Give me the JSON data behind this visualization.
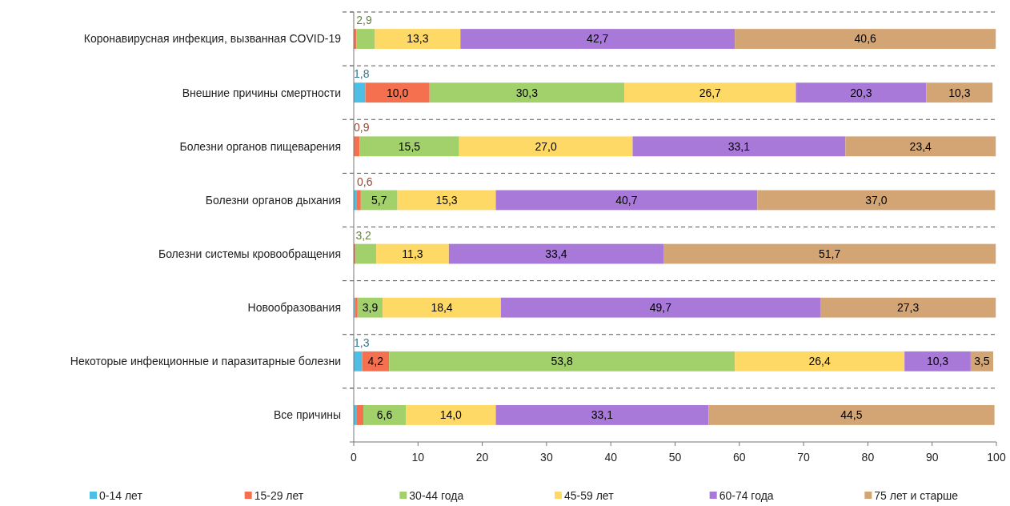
{
  "chart_data": {
    "type": "bar",
    "orientation": "horizontal",
    "stacked": true,
    "categories": [
      "Коронавирусная инфекция, вызванная COVID-19",
      "Внешние причины смертности",
      "Болезни органов пищеварения",
      "Болезни органов дыхания",
      "Болезни системы кровообращения",
      "Новообразования",
      "Некоторые инфекционные и паразитарные болезни",
      "Все причины"
    ],
    "series": [
      {
        "name": "0-14 лет",
        "color": "#4dbfe6",
        "values": [
          null,
          1.8,
          null,
          0.5,
          null,
          0.2,
          1.3,
          0.5
        ],
        "value_labels": [
          null,
          "1,8",
          null,
          null,
          null,
          null,
          "1,3",
          null
        ]
      },
      {
        "name": "15-29 лет",
        "color": "#f4704f",
        "values": [
          0.4,
          10.0,
          0.9,
          0.6,
          0.3,
          0.4,
          4.2,
          1.0
        ],
        "value_labels": [
          null,
          "10,0",
          "0,9",
          "0,6",
          null,
          null,
          "4,2",
          null
        ]
      },
      {
        "name": "30-44 года",
        "color": "#a2d06b",
        "values": [
          2.9,
          30.3,
          15.5,
          5.7,
          3.2,
          3.9,
          53.8,
          6.6
        ],
        "value_labels": [
          "2,9",
          "30,3",
          "15,5",
          "5,7",
          "3,2",
          "3,9",
          "53,8",
          "6,6"
        ]
      },
      {
        "name": "45-59 лет",
        "color": "#ffd966",
        "values": [
          13.3,
          26.7,
          27.0,
          15.3,
          11.3,
          18.4,
          26.4,
          14.0
        ],
        "value_labels": [
          "13,3",
          "26,7",
          "27,0",
          "15,3",
          "11,3",
          "18,4",
          "26,4",
          "14,0"
        ]
      },
      {
        "name": "60-74 года",
        "color": "#a979d9",
        "values": [
          42.7,
          20.3,
          33.1,
          40.7,
          33.4,
          49.7,
          10.3,
          33.1
        ],
        "value_labels": [
          "42,7",
          "20,3",
          "33,1",
          "40,7",
          "33,4",
          "49,7",
          "10,3",
          "33,1"
        ]
      },
      {
        "name": "75 лет и старше",
        "color": "#d4a574",
        "values": [
          40.6,
          10.3,
          23.4,
          37.0,
          51.7,
          27.3,
          3.5,
          44.5
        ],
        "value_labels": [
          "40,6",
          "10,3",
          "23,4",
          "37,0",
          "51,7",
          "27,3",
          "3,5",
          "44,5"
        ]
      }
    ],
    "xlim": [
      0,
      100
    ],
    "xticks": [
      0,
      10,
      20,
      30,
      40,
      50,
      60,
      70,
      80,
      90,
      100
    ],
    "grid": "y",
    "legend": "bottom"
  }
}
